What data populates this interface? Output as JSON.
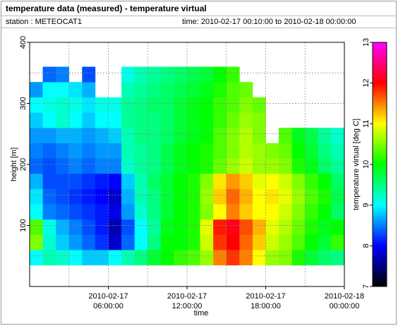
{
  "header": {
    "title": "temperature data (measured) - temperature virtual",
    "station": "station : METEOCAT1",
    "time": "time: 2010-02-17 00:10:00 to 2010-02-18 00:00:00"
  },
  "chart_data": {
    "type": "heatmap",
    "xlabel": "time",
    "ylabel": "height [m]",
    "colorbar_label": "temperature virtual [deg C]",
    "xlim": [
      "2010-02-17 00:00:00",
      "2010-02-18 00:00:00"
    ],
    "xticks": [
      "2010-02-17 06:00:00",
      "2010-02-17 12:00:00",
      "2010-02-17 18:00:00",
      "2010-02-18 00:00:00"
    ],
    "x_minor_ticks": [
      "2010-02-17 03:00:00",
      "2010-02-17 09:00:00",
      "2010-02-17 15:00:00",
      "2010-02-17 21:00:00"
    ],
    "ylim": [
      0,
      400
    ],
    "yticks": [
      100,
      200,
      300,
      400
    ],
    "y_minor_ticks": [
      50,
      150,
      250,
      350
    ],
    "grid": true,
    "zlim": [
      7,
      13
    ],
    "zticks": [
      7,
      8,
      9,
      10,
      11,
      12,
      13
    ],
    "colorscale": [
      "#000000",
      "#0000ff",
      "#00ffff",
      "#00ff00",
      "#ffff00",
      "#ff0000",
      "#ff00ff"
    ],
    "x_bins": [
      "2010-02-17 00:00:00",
      "2010-02-17 01:00:00",
      "2010-02-17 02:00:00",
      "2010-02-17 03:00:00",
      "2010-02-17 04:00:00",
      "2010-02-17 05:00:00",
      "2010-02-17 06:00:00",
      "2010-02-17 07:00:00",
      "2010-02-17 08:00:00",
      "2010-02-17 09:00:00",
      "2010-02-17 10:00:00",
      "2010-02-17 11:00:00",
      "2010-02-17 12:00:00",
      "2010-02-17 13:00:00",
      "2010-02-17 14:00:00",
      "2010-02-17 15:00:00",
      "2010-02-17 16:00:00",
      "2010-02-17 17:00:00",
      "2010-02-17 18:00:00",
      "2010-02-17 19:00:00",
      "2010-02-17 20:00:00",
      "2010-02-17 21:00:00",
      "2010-02-17 22:00:00",
      "2010-02-17 23:00:00",
      "2010-02-18 00:00:00"
    ],
    "y_bins": [
      35,
      60,
      85,
      110,
      135,
      160,
      185,
      210,
      235,
      260,
      285,
      310,
      335,
      360
    ],
    "values": [
      [
        9.0,
        9.3,
        9.2,
        9.0,
        8.8,
        8.8,
        9.0,
        9.3,
        9.5,
        9.8,
        10.0,
        10.2,
        10.3,
        10.6,
        11.5,
        11.8,
        11.5,
        11.0,
        10.6,
        10.5,
        10.1,
        9.8,
        9.6,
        9.5
      ],
      [
        10.5,
        9.2,
        8.8,
        8.6,
        8.4,
        8.2,
        7.8,
        8.4,
        9.0,
        9.5,
        10.0,
        10.0,
        10.1,
        10.8,
        11.8,
        12.0,
        11.6,
        11.2,
        10.8,
        10.6,
        10.3,
        10.0,
        9.8,
        10.2
      ],
      [
        10.3,
        9.1,
        8.7,
        8.5,
        8.3,
        8.1,
        7.7,
        8.3,
        9.0,
        9.4,
        9.9,
        10.0,
        10.1,
        10.9,
        11.9,
        12.1,
        11.7,
        11.3,
        10.9,
        10.7,
        10.4,
        10.1,
        9.9,
        10.0
      ],
      [
        9.0,
        8.5,
        8.4,
        8.3,
        8.2,
        8.1,
        7.9,
        8.6,
        9.2,
        9.5,
        9.8,
        10.0,
        10.1,
        10.5,
        11.0,
        11.5,
        11.2,
        11.0,
        11.0,
        10.8,
        10.5,
        10.2,
        10.0,
        9.6
      ],
      [
        8.9,
        8.4,
        8.3,
        8.2,
        8.1,
        8.0,
        7.8,
        8.7,
        9.3,
        9.5,
        9.8,
        10.0,
        10.1,
        10.6,
        11.2,
        11.6,
        11.3,
        11.0,
        11.1,
        10.9,
        10.6,
        10.3,
        10.1,
        9.7
      ],
      [
        8.7,
        8.3,
        8.3,
        8.3,
        8.2,
        8.1,
        8.0,
        8.8,
        9.3,
        9.6,
        9.8,
        10.0,
        10.1,
        10.5,
        11.1,
        11.4,
        11.2,
        10.9,
        11.0,
        10.8,
        10.5,
        10.2,
        10.0,
        9.6
      ],
      [
        8.4,
        8.3,
        8.4,
        8.5,
        8.4,
        8.5,
        8.5,
        9.2,
        9.4,
        9.5,
        9.7,
        9.9,
        10.0,
        10.1,
        10.4,
        10.6,
        10.8,
        10.6,
        10.6,
        10.5,
        10.1,
        9.9,
        9.6,
        9.4
      ],
      [
        8.5,
        8.4,
        8.5,
        8.6,
        8.5,
        8.6,
        8.6,
        9.3,
        9.4,
        9.5,
        9.7,
        9.9,
        10.0,
        10.1,
        10.3,
        10.5,
        10.7,
        10.6,
        10.5,
        10.4,
        10.0,
        9.8,
        9.5,
        9.3
      ],
      [
        8.6,
        8.6,
        8.7,
        8.7,
        8.6,
        8.7,
        8.8,
        9.3,
        9.5,
        9.5,
        9.6,
        9.8,
        9.9,
        10.0,
        10.3,
        10.5,
        10.7,
        10.5,
        null,
        10.3,
        9.9,
        9.7,
        9.4,
        9.2
      ],
      [
        8.8,
        9.0,
        9.2,
        9.0,
        8.8,
        9.0,
        9.0,
        9.4,
        9.5,
        9.5,
        9.6,
        9.8,
        9.9,
        10.0,
        10.2,
        10.4,
        10.6,
        10.5,
        null,
        null,
        null,
        null,
        null,
        null
      ],
      [
        9.0,
        9.1,
        9.2,
        9.1,
        8.9,
        9.1,
        9.1,
        9.4,
        9.5,
        9.6,
        9.6,
        9.8,
        9.9,
        10.0,
        10.2,
        10.3,
        10.5,
        10.4,
        null,
        null,
        null,
        null,
        null,
        null
      ],
      [
        8.6,
        9.0,
        9.0,
        8.9,
        8.7,
        null,
        null,
        9.3,
        9.4,
        9.5,
        9.6,
        9.7,
        9.8,
        9.9,
        10.1,
        10.3,
        10.4,
        null,
        null,
        null,
        null,
        null,
        null,
        null
      ],
      [
        null,
        8.4,
        8.5,
        null,
        8.3,
        null,
        null,
        9.1,
        9.3,
        9.4,
        9.5,
        9.6,
        9.7,
        9.8,
        10.0,
        10.2,
        null,
        null,
        null,
        null,
        null,
        null,
        null,
        null
      ]
    ]
  }
}
